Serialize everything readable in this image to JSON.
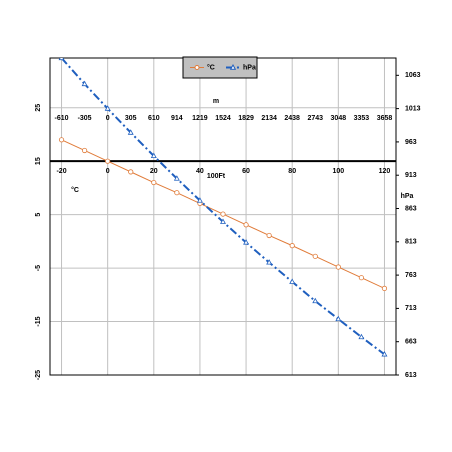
{
  "chart_data": {
    "type": "line",
    "x": [
      -20,
      -10,
      0,
      10,
      20,
      30,
      40,
      50,
      60,
      70,
      80,
      90,
      100,
      110,
      120
    ],
    "series": [
      {
        "name": "°C",
        "color": "#e07b39",
        "marker": "circle",
        "dash": "solid",
        "values": [
          19.0,
          17.0,
          15.0,
          13.0,
          11.0,
          9.1,
          7.1,
          5.1,
          3.1,
          1.1,
          -0.8,
          -2.8,
          -4.8,
          -6.8,
          -8.8
        ]
      },
      {
        "name": "hPa",
        "color": "#1f5fbf",
        "marker": "triangle",
        "dash": "dashdot",
        "axis": "y2",
        "values": [
          1089,
          1050,
          1013,
          977,
          942,
          908,
          875,
          843,
          812,
          782,
          753,
          724,
          697,
          670,
          644
        ]
      }
    ],
    "xlabel": "100Ft",
    "xlim": [
      -25,
      125
    ],
    "xticks": [
      -20,
      0,
      20,
      40,
      60,
      80,
      100,
      120
    ],
    "x2label": "m",
    "x2lim": [
      -762,
      3810
    ],
    "x2ticks": [
      -610,
      -305,
      0,
      305,
      610,
      914,
      1219,
      1524,
      1829,
      2134,
      2438,
      2743,
      3048,
      3353,
      3658
    ],
    "ylabel": "°C",
    "ylim": [
      -25,
      34.3
    ],
    "yticks": [
      25,
      15,
      5,
      -5,
      -15,
      -25
    ],
    "y2label": "hPa",
    "y2lim": [
      613,
      1089
    ],
    "y2ticks": [
      1063,
      1013,
      963,
      913,
      863,
      813,
      763,
      713,
      663,
      613
    ],
    "grid": true
  }
}
